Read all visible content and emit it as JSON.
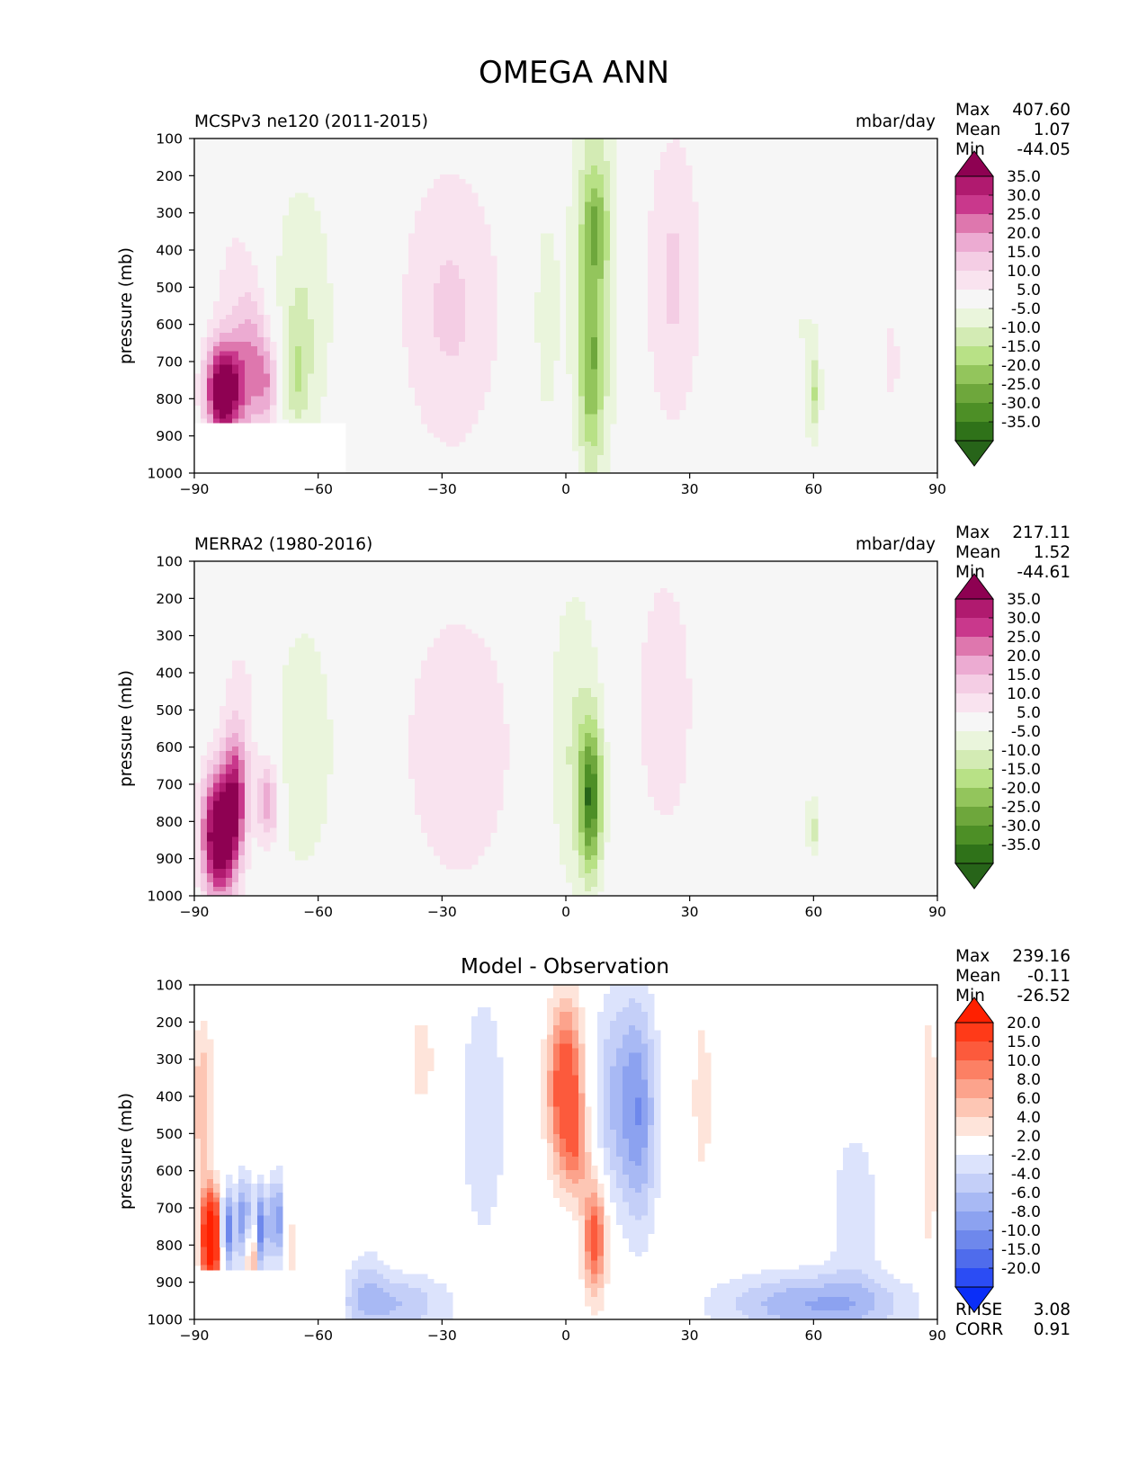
{
  "figure": {
    "title": "OMEGA ANN"
  },
  "chart_data": [
    {
      "type": "heatmap",
      "title": "MCSPv3 ne120 (2011-2015)",
      "units": "mbar/day",
      "xlabel": "",
      "ylabel": "pressure (mb)",
      "xlim": [
        -90,
        90
      ],
      "ylim": [
        1000,
        100
      ],
      "xticks": [
        "−90",
        "−60",
        "−30",
        "0",
        "30",
        "60",
        "90"
      ],
      "yticks": [
        "100",
        "200",
        "300",
        "400",
        "500",
        "600",
        "700",
        "800",
        "900",
        "1000"
      ],
      "stats": [
        {
          "label": "Max",
          "value": "407.60"
        },
        {
          "label": "Mean",
          "value": "1.07"
        },
        {
          "label": "Min",
          "value": "-44.05"
        }
      ],
      "colorbar": {
        "labels": [
          "35.0",
          "30.0",
          "25.0",
          "20.0",
          "15.0",
          "10.0",
          "5.0",
          "-5.0",
          "-10.0",
          "-15.0",
          "-20.0",
          "-25.0",
          "-30.0",
          "-35.0"
        ],
        "colors": [
          "#8e0152",
          "#b01a6f",
          "#c9388c",
          "#de77ae",
          "#ecabd2",
          "#f4cde4",
          "#f9e3ef",
          "#f6f6f6",
          "#eaf5dc",
          "#d3ebb4",
          "#b8e186",
          "#93c55c",
          "#6ea73c",
          "#4d8f26",
          "#2f7219",
          "#276419"
        ]
      },
      "features": [
        {
          "x": -83,
          "p": 780,
          "sx": 3,
          "sp": 90,
          "v": 45
        },
        {
          "x": -76,
          "p": 720,
          "sx": 3,
          "sp": 140,
          "v": 18
        },
        {
          "x": -72,
          "p": 760,
          "sx": 2,
          "sp": 90,
          "v": 14
        },
        {
          "x": -80,
          "p": 500,
          "sx": 5,
          "sp": 200,
          "v": 6
        },
        {
          "x": -64,
          "p": 570,
          "sx": 6,
          "sp": 280,
          "v": -10
        },
        {
          "x": -65,
          "p": 740,
          "sx": 2,
          "sp": 100,
          "v": -8
        },
        {
          "x": -28,
          "p": 560,
          "sx": 9,
          "sp": 290,
          "v": 11
        },
        {
          "x": -5,
          "p": 580,
          "sx": 3,
          "sp": 300,
          "v": -7
        },
        {
          "x": 7,
          "p": 450,
          "sx": 4,
          "sp": 380,
          "v": -16
        },
        {
          "x": 7,
          "p": 330,
          "sx": 2,
          "sp": 90,
          "v": -12
        },
        {
          "x": 6,
          "p": 740,
          "sx": 2,
          "sp": 180,
          "v": -14
        },
        {
          "x": 26,
          "p": 480,
          "sx": 5,
          "sp": 300,
          "v": 11
        },
        {
          "x": 57,
          "p": 600,
          "sx": 6,
          "sp": 300,
          "v": -5
        },
        {
          "x": 60,
          "p": 790,
          "sx": 1,
          "sp": 80,
          "v": -12
        },
        {
          "x": 79,
          "p": 700,
          "sx": 2,
          "sp": 150,
          "v": 6
        }
      ],
      "masks": [
        {
          "x0": -90,
          "x1": -54,
          "p0": 865,
          "p1": 1000
        }
      ],
      "max_value": 407.6,
      "mean_value": 1.07,
      "min_value": -44.05
    },
    {
      "type": "heatmap",
      "title": "MERRA2 (1980-2016)",
      "units": "mbar/day",
      "xlabel": "",
      "ylabel": "pressure (mb)",
      "xlim": [
        -90,
        90
      ],
      "ylim": [
        1000,
        100
      ],
      "xticks": [
        "−90",
        "−60",
        "−30",
        "0",
        "30",
        "60",
        "90"
      ],
      "yticks": [
        "100",
        "200",
        "300",
        "400",
        "500",
        "600",
        "700",
        "800",
        "900",
        "1000"
      ],
      "stats": [
        {
          "label": "Max",
          "value": "217.11"
        },
        {
          "label": "Mean",
          "value": "1.52"
        },
        {
          "label": "Min",
          "value": "-44.61"
        }
      ],
      "colorbar": {
        "labels": [
          "35.0",
          "30.0",
          "25.0",
          "20.0",
          "15.0",
          "10.0",
          "5.0",
          "-5.0",
          "-10.0",
          "-15.0",
          "-20.0",
          "-25.0",
          "-30.0",
          "-35.0"
        ],
        "colors": [
          "#8e0152",
          "#b01a6f",
          "#c9388c",
          "#de77ae",
          "#ecabd2",
          "#f4cde4",
          "#f9e3ef",
          "#f6f6f6",
          "#eaf5dc",
          "#d3ebb4",
          "#b8e186",
          "#93c55c",
          "#6ea73c",
          "#4d8f26",
          "#2f7219",
          "#276419"
        ]
      },
      "features": [
        {
          "x": -84,
          "p": 840,
          "sx": 3,
          "sp": 120,
          "v": 45
        },
        {
          "x": -80,
          "p": 720,
          "sx": 2,
          "sp": 120,
          "v": 22
        },
        {
          "x": -72,
          "p": 750,
          "sx": 2,
          "sp": 80,
          "v": 20
        },
        {
          "x": -78,
          "p": 500,
          "sx": 5,
          "sp": 250,
          "v": 6
        },
        {
          "x": -64,
          "p": 600,
          "sx": 6,
          "sp": 260,
          "v": -10
        },
        {
          "x": -26,
          "p": 600,
          "sx": 10,
          "sp": 280,
          "v": 10
        },
        {
          "x": 2,
          "p": 580,
          "sx": 5,
          "sp": 330,
          "v": -10
        },
        {
          "x": 6,
          "p": 740,
          "sx": 2,
          "sp": 140,
          "v": -30
        },
        {
          "x": 24,
          "p": 480,
          "sx": 5,
          "sp": 260,
          "v": 10
        },
        {
          "x": 56,
          "p": 600,
          "sx": 4,
          "sp": 250,
          "v": -5
        },
        {
          "x": 60,
          "p": 820,
          "sx": 1,
          "sp": 50,
          "v": -10
        },
        {
          "x": 80,
          "p": 750,
          "sx": 3,
          "sp": 180,
          "v": 5
        },
        {
          "x": 45,
          "p": 800,
          "sx": 2,
          "sp": 150,
          "v": 5
        }
      ],
      "masks": [],
      "max_value": 217.11,
      "mean_value": 1.52,
      "min_value": -44.61
    },
    {
      "type": "heatmap",
      "title": "Model - Observation",
      "units": "",
      "xlabel": "",
      "ylabel": "pressure (mb)",
      "xlim": [
        -90,
        90
      ],
      "ylim": [
        1000,
        100
      ],
      "xticks": [
        "−90",
        "−60",
        "−30",
        "0",
        "30",
        "60",
        "90"
      ],
      "yticks": [
        "100",
        "200",
        "300",
        "400",
        "500",
        "600",
        "700",
        "800",
        "900",
        "1000"
      ],
      "stats": [
        {
          "label": "Max",
          "value": "239.16"
        },
        {
          "label": "Mean",
          "value": "-0.11"
        },
        {
          "label": "Min",
          "value": "-26.52"
        }
      ],
      "stats_bottom": [
        {
          "label": "RMSE",
          "value": "3.08"
        },
        {
          "label": "CORR",
          "value": "0.91"
        }
      ],
      "colorbar": {
        "labels": [
          "20.0",
          "15.0",
          "10.0",
          "8.0",
          "6.0",
          "4.0",
          "2.0",
          "-2.0",
          "-4.0",
          "-6.0",
          "-8.0",
          "-10.0",
          "-15.0",
          "-20.0"
        ],
        "colors": [
          "#ff2000",
          "#ff3a18",
          "#fc5a3c",
          "#fc8064",
          "#fca38c",
          "#fdc6b4",
          "#fee4da",
          "#ffffff",
          "#dce3fc",
          "#c4cff8",
          "#a8b9f4",
          "#8ca2f0",
          "#6e88ec",
          "#4f6cec",
          "#2b4cf4",
          "#0a2ef8"
        ]
      },
      "features": [
        {
          "x": 0,
          "p": 380,
          "sx": 3,
          "sp": 160,
          "v": 14
        },
        {
          "x": 7,
          "p": 780,
          "sx": 2,
          "sp": 110,
          "v": 12
        },
        {
          "x": 3,
          "p": 560,
          "sx": 2,
          "sp": 80,
          "v": 5
        },
        {
          "x": 12,
          "p": 400,
          "sx": 4,
          "sp": 200,
          "v": -6
        },
        {
          "x": 18,
          "p": 450,
          "sx": 3,
          "sp": 220,
          "v": -8
        },
        {
          "x": -20,
          "p": 450,
          "sx": 4,
          "sp": 250,
          "v": -4
        },
        {
          "x": -35,
          "p": 300,
          "sx": 2,
          "sp": 80,
          "v": 4
        },
        {
          "x": -42,
          "p": 960,
          "sx": 10,
          "sp": 60,
          "v": -6
        },
        {
          "x": -48,
          "p": 900,
          "sx": 3,
          "sp": 80,
          "v": -3
        },
        {
          "x": 60,
          "p": 960,
          "sx": 16,
          "sp": 60,
          "v": -8
        },
        {
          "x": 70,
          "p": 700,
          "sx": 5,
          "sp": 200,
          "v": -3
        },
        {
          "x": 33,
          "p": 400,
          "sx": 2,
          "sp": 200,
          "v": 3
        },
        {
          "x": -88,
          "p": 420,
          "sx": 2,
          "sp": 150,
          "v": 6
        },
        {
          "x": -86,
          "p": 780,
          "sx": 1.5,
          "sp": 80,
          "v": 30
        },
        {
          "x": -82,
          "p": 760,
          "sx": 1.2,
          "sp": 80,
          "v": -12
        },
        {
          "x": -78,
          "p": 730,
          "sx": 1.2,
          "sp": 80,
          "v": -10
        },
        {
          "x": -74,
          "p": 760,
          "sx": 1.2,
          "sp": 80,
          "v": -12
        },
        {
          "x": -70,
          "p": 730,
          "sx": 1.2,
          "sp": 80,
          "v": -10
        },
        {
          "x": -76,
          "p": 820,
          "sx": 1,
          "sp": 60,
          "v": 10
        },
        {
          "x": -66,
          "p": 800,
          "sx": 1,
          "sp": 80,
          "v": 3
        },
        {
          "x": 88,
          "p": 500,
          "sx": 1.5,
          "sp": 250,
          "v": 4
        }
      ],
      "masks": [
        {
          "x0": -90,
          "x1": -54,
          "p0": 865,
          "p1": 1000
        }
      ],
      "max_value": 239.16,
      "mean_value": -0.11,
      "min_value": -26.52,
      "rmse": 3.08,
      "corr": 0.91
    }
  ]
}
